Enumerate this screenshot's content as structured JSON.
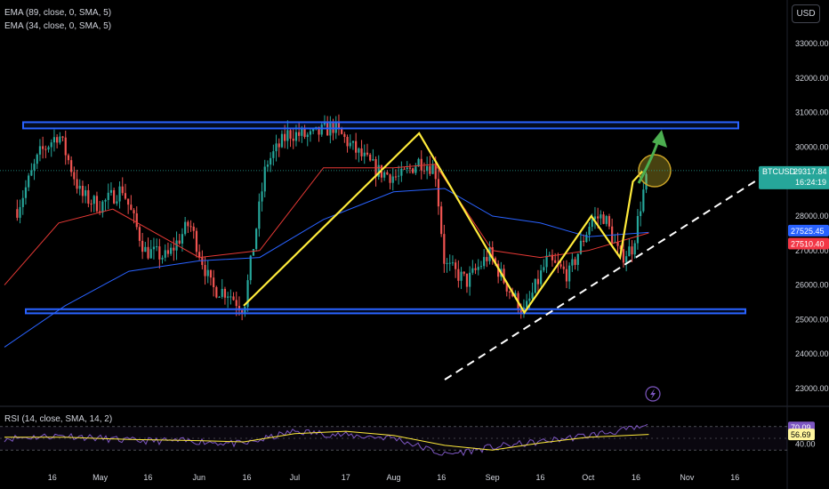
{
  "indicators": {
    "ema1": "EMA (89, close, 0, SMA, 5)",
    "ema2": "EMA (34, close, 0, SMA, 5)",
    "rsi": "RSI (14, close, SMA, 14, 2)"
  },
  "currency": "USD",
  "price_labels": {
    "symbol": "BTCUSD",
    "last_price": "29317.84",
    "countdown": "16:24:19",
    "ema89_value": "27525.45",
    "ema34_value": "27510.40",
    "rsi_value": "70.09",
    "rsi_ma_value": "56.69",
    "rsi_tick": "40.00"
  },
  "colors": {
    "bull": "#26a69a",
    "bear": "#ef5350",
    "ema89": "#2962ff",
    "ema34": "#e53935",
    "channel": "#2962ff",
    "zigzag": "#ffeb3b",
    "trendline": "#ffffff",
    "rsi_line": "#7e57c2",
    "rsi_ma": "#ffeb3b",
    "arrow": "#4caf50",
    "badge_bg": "#2962ff",
    "badge_red": "#f23645",
    "badge_yellow": "#fff59d"
  },
  "chart_data": {
    "type": "line",
    "title": "",
    "symbol": "BTCUSD",
    "x_axis_labels": [
      "16",
      "May",
      "16",
      "Jun",
      "16",
      "Jul",
      "17",
      "Aug",
      "16",
      "Sep",
      "16",
      "Oct",
      "16",
      "Nov",
      "16"
    ],
    "y_axis_labels": [
      "33000.00",
      "32000.00",
      "31000.00",
      "30000.00",
      "28000.00",
      "27000.00",
      "26000.00",
      "25000.00",
      "24000.00",
      "23000.00"
    ],
    "ylim": [
      22500,
      33500
    ],
    "price_path": {
      "name": "BTCUSD close (approx.)",
      "x": [
        "Apr 5",
        "Apr 12",
        "Apr 18",
        "Apr 25",
        "May 1",
        "May 8",
        "May 15",
        "May 22",
        "May 29",
        "Jun 5",
        "Jun 10",
        "Jun 15",
        "Jun 22",
        "Jun 29",
        "Jul 6",
        "Jul 13",
        "Jul 20",
        "Jul 27",
        "Aug 3",
        "Aug 9",
        "Aug 14",
        "Aug 17",
        "Aug 24",
        "Aug 31",
        "Sep 6",
        "Sep 11",
        "Sep 18",
        "Sep 25",
        "Oct 2",
        "Oct 6",
        "Oct 11",
        "Oct 15",
        "Oct 18",
        "Oct 20"
      ],
      "y": [
        28200,
        29800,
        30400,
        28600,
        28300,
        28800,
        27000,
        26800,
        27800,
        25900,
        25800,
        25300,
        29500,
        30400,
        30300,
        30600,
        29900,
        29300,
        29100,
        29600,
        29400,
        26600,
        26100,
        26900,
        25900,
        25200,
        26700,
        26300,
        27900,
        28000,
        26800,
        27100,
        28600,
        29300
      ]
    },
    "series": [
      {
        "name": "EMA (89, close, 0, SMA, 5)",
        "x": [
          "Apr 1",
          "Apr 20",
          "May 10",
          "Jun 1",
          "Jun 20",
          "Jul 10",
          "Aug 1",
          "Aug 17",
          "Sep 1",
          "Sep 16",
          "Oct 1",
          "Oct 20"
        ],
        "y": [
          24200,
          25400,
          26400,
          26700,
          26800,
          27900,
          28700,
          28800,
          28000,
          27800,
          27400,
          27525.45
        ]
      },
      {
        "name": "EMA (34, close, 0, SMA, 5)",
        "x": [
          "Apr 1",
          "Apr 18",
          "May 5",
          "Jun 1",
          "Jun 20",
          "Jul 10",
          "Aug 1",
          "Aug 14",
          "Sep 1",
          "Sep 16",
          "Oct 1",
          "Oct 20"
        ],
        "y": [
          26000,
          27800,
          28200,
          26800,
          27000,
          29400,
          29400,
          29500,
          27000,
          26800,
          27000,
          27510.4
        ]
      }
    ],
    "drawings": {
      "channel_top": [
        30540,
        30720
      ],
      "channel_bottom": [
        25180,
        25300
      ],
      "zigzag": {
        "x": [
          "Jun 15",
          "Aug 9",
          "Sep 11",
          "Oct 2",
          "Oct 11",
          "Oct 15",
          "Oct 18"
        ],
        "y": [
          25400,
          30400,
          25200,
          28000,
          26800,
          29000,
          29300
        ]
      }
    },
    "rsi": {
      "name": "RSI (14, close, SMA, 14, 2)",
      "last": 70.09,
      "ma_last": 56.69,
      "x": [
        "Apr 1",
        "Apr 20",
        "May 10",
        "Jun 1",
        "Jun 15",
        "Jul 1",
        "Jul 17",
        "Aug 1",
        "Aug 17",
        "Sep 1",
        "Sep 16",
        "Oct 1",
        "Oct 20"
      ],
      "y": [
        50,
        55,
        46,
        45,
        40,
        62,
        55,
        51,
        22,
        35,
        44,
        55,
        70.09
      ],
      "ma_y": [
        52,
        52,
        48,
        46,
        44,
        58,
        62,
        55,
        38,
        30,
        42,
        52,
        56.69
      ],
      "levels": [
        70,
        30
      ]
    },
    "grid": true,
    "legend": "top-left"
  }
}
